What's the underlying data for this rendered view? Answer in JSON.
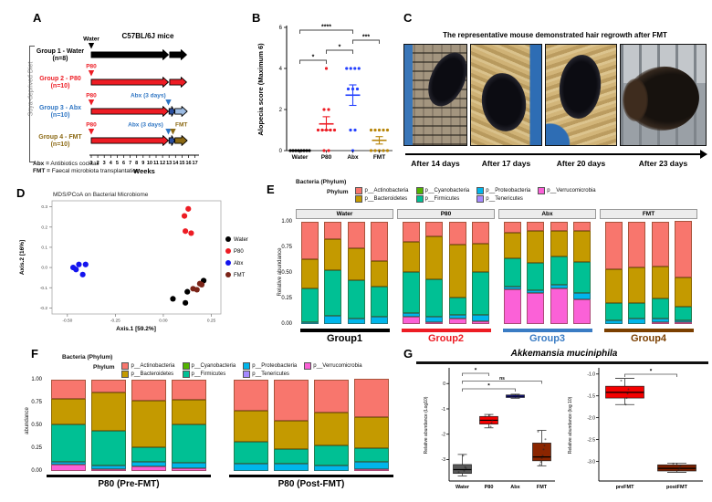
{
  "panelA": {
    "label": "A",
    "strain_title": "C57BL/6J mice",
    "diet_label": "Soya-deprived Diet",
    "weeks_label": "Weeks",
    "weeks": [
      "1",
      "2",
      "3",
      "4",
      "5",
      "6",
      "7",
      "8",
      "9",
      "10",
      "11",
      "12",
      "13",
      "14",
      "15",
      "16",
      "17"
    ],
    "footnotes": [
      {
        "term": "Abx =",
        "definition": " Antibiotics cocktail"
      },
      {
        "term": "FMT =",
        "definition": " Faecal microbiota transplantation"
      }
    ],
    "groups": [
      {
        "label": "Group 1 - Water",
        "n": "(n=8)",
        "color": "#000000",
        "arrows": [
          {
            "from": 1,
            "to": 12.9,
            "color": "#000000"
          },
          {
            "from": 13.1,
            "to": 15.7,
            "color": "#000000"
          }
        ],
        "markers": [
          {
            "text": "Water",
            "color": "#000000",
            "week": 1
          }
        ]
      },
      {
        "label": "Group 2 - P80",
        "n": "(n=10)",
        "color": "#ED1C24",
        "arrows": [
          {
            "from": 1,
            "to": 12.9,
            "color": "#ED1C24"
          },
          {
            "from": 13.1,
            "to": 15.7,
            "color": "#ED1C24"
          }
        ],
        "markers": [
          {
            "text": "P80",
            "color": "#ED1C24",
            "week": 1
          }
        ]
      },
      {
        "label": "Group 3 - Abx",
        "n": "(n=10)",
        "color": "#2E75C3",
        "arrows": [
          {
            "from": 1,
            "to": 12.9,
            "color": "#ED1C24"
          },
          {
            "from": 13.0,
            "to": 13.9,
            "color": "#2B4FA0"
          },
          {
            "from": 13.9,
            "to": 15.8,
            "color": "#9DBCE3"
          }
        ],
        "markers": [
          {
            "text": "P80",
            "color": "#ED1C24",
            "week": 1
          },
          {
            "text": "Abx (3 days)",
            "color": "#2E75C3",
            "week": 12.9,
            "text_week": 12.5,
            "anchor": "end"
          }
        ]
      },
      {
        "label": "Group 4 - FMT",
        "n": "(n=10)",
        "color": "#8B6914",
        "arrows": [
          {
            "from": 1,
            "to": 12.9,
            "color": "#ED1C24"
          },
          {
            "from": 13.0,
            "to": 13.9,
            "color": "#2B4FA0"
          },
          {
            "from": 13.9,
            "to": 15.8,
            "color": "#8B6914"
          }
        ],
        "markers": [
          {
            "text": "P80",
            "color": "#ED1C24",
            "week": 1
          },
          {
            "text": "Abx (3 days)",
            "color": "#2E75C3",
            "week": 12.9,
            "text_week": 12.1,
            "anchor": "end"
          },
          {
            "text": "FMT",
            "color": "#8B6914",
            "week": 13.6,
            "text_week": 14.9
          }
        ]
      }
    ]
  },
  "panelB": {
    "label": "B"
  },
  "panelC": {
    "label": "C",
    "title": "The representative mouse demonstrated hair regrowth after FMT",
    "captions": [
      "After 14 days",
      "After 17 days",
      "After 20 days",
      "After 23 days"
    ]
  },
  "panelD": {
    "label": "D"
  },
  "panelE": {
    "label": "E"
  },
  "panelF": {
    "label": "F"
  },
  "panelG": {
    "label": "G",
    "title": "Akkemansia muciniphila"
  },
  "phyla_legend": {
    "title": "Bacteria (Phylum)",
    "key_label": "Phylum",
    "columns": [
      [
        {
          "key": "actino",
          "label": "p__Actinobacteria"
        },
        {
          "key": "bacter",
          "label": "p__Bacteroidetes"
        }
      ],
      [
        {
          "key": "cyano",
          "label": "p__Cyanobacteria"
        },
        {
          "key": "firmi",
          "label": "p__Firmicutes"
        }
      ],
      [
        {
          "key": "proteo",
          "label": "p__Proteobacteria"
        },
        {
          "key": "tener",
          "label": "p__Tenericutes"
        }
      ],
      [
        {
          "key": "verruco",
          "label": "p__Verrucomicrobia"
        }
      ]
    ]
  },
  "phyla_colors": {
    "actino": "#F8766D",
    "bacter": "#C49A00",
    "cyano": "#53B400",
    "firmi": "#00C094",
    "proteo": "#00B6EB",
    "tener": "#A58AFF",
    "verruco": "#FB61D7"
  },
  "chart_data": [
    {
      "id": "B",
      "type": "scatter",
      "ylabel": "Alopecia score (Maximum 6)",
      "ylim": [
        0,
        6
      ],
      "yticks": [
        0,
        2,
        4,
        6
      ],
      "ytick_labels": [
        "0",
        "2",
        "4",
        "6"
      ],
      "categories": [
        "Water",
        "P80",
        "Abx",
        "FMT"
      ],
      "colors": [
        "#000000",
        "#ED1C24",
        "#2440FF",
        "#B8860B"
      ],
      "points": [
        [
          0,
          0,
          0,
          0,
          0,
          0,
          0,
          0
        ],
        [
          4,
          2,
          2,
          1,
          1,
          1,
          1,
          1,
          0,
          0
        ],
        [
          4,
          4,
          4,
          4,
          3,
          3,
          3,
          1,
          1,
          0
        ],
        [
          1,
          1,
          1,
          1,
          1,
          0,
          0,
          0,
          0,
          0
        ]
      ],
      "mean": [
        0,
        1.3,
        2.7,
        0.5
      ],
      "sem_lo": [
        0,
        1.0,
        2.2,
        0.32
      ],
      "sem_hi": [
        0,
        1.65,
        3.2,
        0.68
      ],
      "show_errorbar": [
        false,
        true,
        true,
        true
      ],
      "brackets": [
        {
          "from": 0,
          "to": 1,
          "label": "*",
          "level": 0
        },
        {
          "from": 1,
          "to": 2,
          "label": "*",
          "level": 1
        },
        {
          "from": 2,
          "to": 3,
          "label": "***",
          "level": 2
        },
        {
          "from": 0,
          "to": 2,
          "label": "****",
          "level": 3
        }
      ]
    },
    {
      "id": "D",
      "type": "scatter",
      "title": "MDS/PCoA on Bacterial Microbiome",
      "xlabel": "Axis.1   [59.2%]",
      "ylabel": "Axis.2   [16%]",
      "xlim": [
        -0.58,
        0.3
      ],
      "ylim": [
        -0.23,
        0.33
      ],
      "xticks": [
        -0.5,
        -0.25,
        0.0,
        0.25
      ],
      "xtick_labels": [
        "-0.50",
        "-0.25",
        "0.00",
        "0.25"
      ],
      "yticks": [
        -0.2,
        -0.1,
        0.0,
        0.1,
        0.2,
        0.3
      ],
      "ytick_labels": [
        "-0.2",
        "-0.1",
        "0.0",
        "0.1",
        "0.2",
        "0.3"
      ],
      "legend_position": "right",
      "colors": {
        "Water": "#000000",
        "P80": "#ED1C24",
        "Abx": "#1414EE",
        "FMT": "#7B2418"
      },
      "series": [
        {
          "name": "Water",
          "xy": [
            [
              0.21,
              -0.065
            ],
            [
              0.125,
              -0.12
            ],
            [
              0.05,
              -0.155
            ],
            [
              0.115,
              -0.175
            ]
          ]
        },
        {
          "name": "P80",
          "xy": [
            [
              0.13,
              0.29
            ],
            [
              0.11,
              0.255
            ],
            [
              0.115,
              0.18
            ],
            [
              0.145,
              0.17
            ]
          ]
        },
        {
          "name": "Abx",
          "xy": [
            [
              -0.47,
              0.0
            ],
            [
              -0.455,
              -0.01
            ],
            [
              -0.44,
              0.015
            ],
            [
              -0.405,
              0.015
            ],
            [
              -0.42,
              -0.035
            ]
          ]
        },
        {
          "name": "FMT",
          "xy": [
            [
              0.155,
              -0.105
            ],
            [
              0.175,
              -0.11
            ],
            [
              0.19,
              -0.08
            ],
            [
              0.2,
              -0.085
            ]
          ]
        }
      ]
    },
    {
      "id": "E",
      "type": "bar",
      "stacked": true,
      "ylabel": "Relative abundance",
      "ytick_labels": [
        "1.00",
        "0.75",
        "0.50",
        "0.25",
        "0.00"
      ],
      "facets": [
        {
          "name": "Water",
          "group_label": "Group1",
          "group_color": "#000000",
          "bars": [
            {
              "verruco": 0.0,
              "proteo": 0.02,
              "firmi": 0.33,
              "bacter": 0.28,
              "actino": 0.37
            },
            {
              "verruco": 0.0,
              "proteo": 0.08,
              "firmi": 0.45,
              "bacter": 0.3,
              "actino": 0.17
            },
            {
              "verruco": 0.0,
              "proteo": 0.05,
              "firmi": 0.38,
              "bacter": 0.31,
              "actino": 0.26
            },
            {
              "verruco": 0.0,
              "proteo": 0.07,
              "firmi": 0.3,
              "bacter": 0.25,
              "actino": 0.38
            }
          ]
        },
        {
          "name": "P80",
          "group_label": "Group2",
          "group_color": "#ED1C24",
          "bars": [
            {
              "verruco": 0.07,
              "proteo": 0.04,
              "firmi": 0.4,
              "bacter": 0.29,
              "actino": 0.2
            },
            {
              "verruco": 0.02,
              "proteo": 0.05,
              "firmi": 0.37,
              "bacter": 0.42,
              "actino": 0.14
            },
            {
              "verruco": 0.05,
              "proteo": 0.04,
              "firmi": 0.17,
              "bacter": 0.52,
              "actino": 0.22
            },
            {
              "verruco": 0.03,
              "proteo": 0.06,
              "firmi": 0.42,
              "bacter": 0.28,
              "actino": 0.21
            }
          ]
        },
        {
          "name": "Abx",
          "group_label": "Group3",
          "group_color": "#3A7CC4",
          "bars": [
            {
              "verruco": 0.34,
              "proteo": 0.03,
              "firmi": 0.27,
              "bacter": 0.25,
              "actino": 0.11
            },
            {
              "verruco": 0.3,
              "proteo": 0.03,
              "firmi": 0.27,
              "bacter": 0.31,
              "actino": 0.09
            },
            {
              "verruco": 0.35,
              "proteo": 0.03,
              "firmi": 0.28,
              "bacter": 0.25,
              "actino": 0.09
            },
            {
              "verruco": 0.24,
              "proteo": 0.06,
              "firmi": 0.31,
              "bacter": 0.3,
              "actino": 0.09
            }
          ]
        },
        {
          "name": "FMT",
          "group_label": "Group4",
          "group_color": "#7B3F00",
          "bars": [
            {
              "verruco": 0.0,
              "proteo": 0.04,
              "firmi": 0.17,
              "bacter": 0.33,
              "actino": 0.46
            },
            {
              "verruco": 0.0,
              "proteo": 0.05,
              "firmi": 0.16,
              "bacter": 0.34,
              "actino": 0.45
            },
            {
              "verruco": 0.02,
              "proteo": 0.03,
              "firmi": 0.2,
              "bacter": 0.31,
              "actino": 0.44
            },
            {
              "verruco": 0.01,
              "proteo": 0.02,
              "firmi": 0.13,
              "bacter": 0.29,
              "actino": 0.55
            }
          ]
        }
      ]
    },
    {
      "id": "F",
      "type": "bar",
      "stacked": true,
      "ylabel": "abundance",
      "ytick_labels": [
        "1.00",
        "0.75",
        "0.50",
        "0.25",
        "0.00"
      ],
      "groups": [
        {
          "label": "P80 (Pre-FMT)",
          "bars": [
            {
              "verruco": 0.07,
              "proteo": 0.03,
              "firmi": 0.41,
              "bacter": 0.28,
              "actino": 0.21
            },
            {
              "verruco": 0.02,
              "proteo": 0.04,
              "firmi": 0.38,
              "bacter": 0.42,
              "actino": 0.14
            },
            {
              "verruco": 0.05,
              "proteo": 0.05,
              "firmi": 0.16,
              "bacter": 0.51,
              "actino": 0.23
            },
            {
              "verruco": 0.03,
              "proteo": 0.06,
              "firmi": 0.42,
              "bacter": 0.27,
              "actino": 0.22
            }
          ]
        },
        {
          "label": "P80 (Post-FMT)",
          "bars": [
            {
              "verruco": 0.0,
              "proteo": 0.08,
              "firmi": 0.24,
              "bacter": 0.34,
              "actino": 0.34
            },
            {
              "verruco": 0.0,
              "proteo": 0.08,
              "firmi": 0.16,
              "bacter": 0.31,
              "actino": 0.45
            },
            {
              "verruco": 0.0,
              "proteo": 0.06,
              "firmi": 0.22,
              "bacter": 0.36,
              "actino": 0.36
            },
            {
              "verruco": 0.01,
              "proteo": 0.08,
              "firmi": 0.15,
              "bacter": 0.34,
              "actino": 0.42
            }
          ]
        }
      ]
    },
    {
      "id": "G-left",
      "type": "box",
      "ylabel": "Relative abundance (Log10)",
      "ylim": [
        0.55,
        -3.85
      ],
      "yticks": [
        0,
        -1,
        -2,
        -3
      ],
      "ytick_labels": [
        "0",
        "-1",
        "-2",
        "-3"
      ],
      "categories": [
        "Water",
        "P80",
        "Abx",
        "FMT"
      ],
      "boxes": [
        {
          "name": "Water",
          "color": "#595959",
          "lo": -3.65,
          "q1": -3.55,
          "med": -3.4,
          "q3": -3.2,
          "hi": -2.8,
          "points": [
            -3.5,
            -3.35,
            -3.3,
            -3.45,
            -2.85
          ]
        },
        {
          "name": "P80",
          "color": "#F40000",
          "lo": -1.75,
          "q1": -1.6,
          "med": -1.45,
          "q3": -1.3,
          "hi": -1.22,
          "points": [
            -1.3,
            -1.45,
            -1.55,
            -1.7,
            -1.25
          ]
        },
        {
          "name": "Abx",
          "color": "#2020FF",
          "lo": -0.58,
          "q1": -0.55,
          "med": -0.5,
          "q3": -0.45,
          "hi": -0.42,
          "points": [
            -0.5,
            -0.53,
            -0.47
          ]
        },
        {
          "name": "FMT",
          "color": "#8B2500",
          "lo": -3.25,
          "q1": -3.05,
          "med": -2.9,
          "q3": -2.35,
          "hi": -1.85,
          "points": [
            -1.9,
            -2.2,
            -2.45,
            -2.6,
            -2.85,
            -2.95,
            -3.1,
            -3.2
          ]
        }
      ],
      "brackets": [
        {
          "from": 0,
          "to": 1,
          "label": "*",
          "level": 0
        },
        {
          "from": 0,
          "to": 3,
          "label": "ns",
          "level": 1
        },
        {
          "from": 0,
          "to": 2,
          "label": "*",
          "level": 2
        }
      ]
    },
    {
      "id": "G-right",
      "type": "box",
      "ylabel": "Relative abundance (log 10)",
      "ylim": [
        -0.9,
        -3.45
      ],
      "yticks": [
        -1.0,
        -1.5,
        -2.0,
        -2.5,
        -3.0
      ],
      "ytick_labels": [
        "-1.0",
        "-1.5",
        "-2.0",
        "-2.5",
        "-3.0"
      ],
      "categories": [
        "preFMT",
        "postFMT"
      ],
      "boxes": [
        {
          "name": "preFMT",
          "color": "#F40000",
          "lo": -1.7,
          "q1": -1.55,
          "med": -1.42,
          "q3": -1.28,
          "hi": -1.1,
          "points": [
            -1.15,
            -1.35,
            -1.45,
            -1.55,
            -1.7
          ]
        },
        {
          "name": "postFMT",
          "color": "#7B2000",
          "lo": -3.25,
          "q1": -3.22,
          "med": -3.16,
          "q3": -3.08,
          "hi": -3.04,
          "points": [
            -3.05,
            -3.1,
            -3.15,
            -3.2
          ]
        }
      ],
      "brackets": [
        {
          "from": 0,
          "to": 1,
          "label": "*",
          "level": 0
        }
      ]
    }
  ]
}
